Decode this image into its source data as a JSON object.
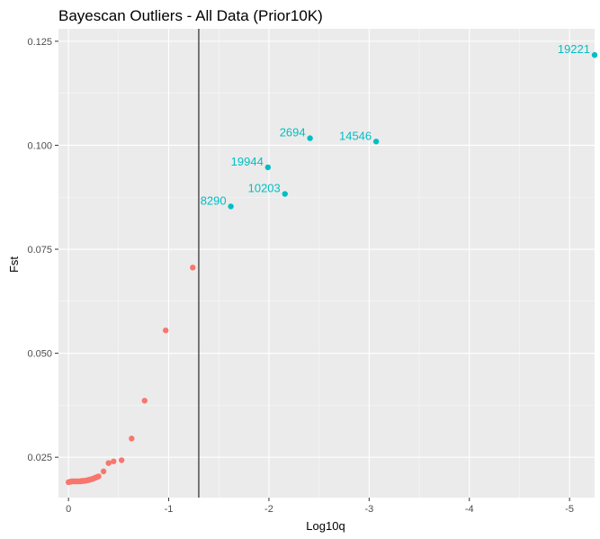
{
  "chart_data": {
    "type": "scatter",
    "title": "Bayescan Outliers - All Data (Prior10K)",
    "xlabel": "Log10q",
    "ylabel": "Fst",
    "xlim": [
      0.1,
      -5.25
    ],
    "ylim": [
      0.0153,
      0.128
    ],
    "x_ticks": [
      0,
      -1,
      -2,
      -3,
      -4,
      -5
    ],
    "x_tick_labels": [
      "0",
      "-1",
      "-2",
      "-3",
      "-4",
      "-5"
    ],
    "y_ticks": [
      0.025,
      0.05,
      0.075,
      0.1,
      0.125
    ],
    "y_tick_labels": [
      "0.025",
      "0.050",
      "0.075",
      "0.100",
      "0.125"
    ],
    "vline": {
      "x": -1.3
    },
    "grid": true,
    "legend": "none",
    "colors": {
      "non_outlier": "#F8766D",
      "outlier": "#00BFC4",
      "panel": "#EBEBEB",
      "grid_major": "#FFFFFF",
      "vline": "#000000"
    },
    "series": [
      {
        "color_key": "non_outlier",
        "points": [
          {
            "x": 0.0,
            "y": 0.019
          },
          {
            "x": -0.01,
            "y": 0.0191
          },
          {
            "x": -0.02,
            "y": 0.0191
          },
          {
            "x": -0.03,
            "y": 0.0192
          },
          {
            "x": -0.04,
            "y": 0.0192
          },
          {
            "x": -0.05,
            "y": 0.0192
          },
          {
            "x": -0.06,
            "y": 0.0192
          },
          {
            "x": -0.07,
            "y": 0.0192
          },
          {
            "x": -0.08,
            "y": 0.0192
          },
          {
            "x": -0.09,
            "y": 0.0192
          },
          {
            "x": -0.1,
            "y": 0.0192
          },
          {
            "x": -0.11,
            "y": 0.0192
          },
          {
            "x": -0.12,
            "y": 0.0192
          },
          {
            "x": -0.13,
            "y": 0.0193
          },
          {
            "x": -0.14,
            "y": 0.0193
          },
          {
            "x": -0.15,
            "y": 0.0193
          },
          {
            "x": -0.16,
            "y": 0.0193
          },
          {
            "x": -0.17,
            "y": 0.0194
          },
          {
            "x": -0.18,
            "y": 0.0194
          },
          {
            "x": -0.19,
            "y": 0.0195
          },
          {
            "x": -0.2,
            "y": 0.0195
          },
          {
            "x": -0.21,
            "y": 0.0196
          },
          {
            "x": -0.22,
            "y": 0.0197
          },
          {
            "x": -0.23,
            "y": 0.0197
          },
          {
            "x": -0.24,
            "y": 0.0198
          },
          {
            "x": -0.25,
            "y": 0.0199
          },
          {
            "x": -0.26,
            "y": 0.02
          },
          {
            "x": -0.27,
            "y": 0.0201
          },
          {
            "x": -0.28,
            "y": 0.0202
          },
          {
            "x": -0.29,
            "y": 0.0203
          },
          {
            "x": -0.3,
            "y": 0.0204
          },
          {
            "x": -0.35,
            "y": 0.0216
          },
          {
            "x": -0.4,
            "y": 0.0236
          },
          {
            "x": -0.45,
            "y": 0.024
          },
          {
            "x": -0.53,
            "y": 0.0243
          },
          {
            "x": -0.63,
            "y": 0.0295
          },
          {
            "x": -0.76,
            "y": 0.0386
          },
          {
            "x": -0.97,
            "y": 0.0555
          },
          {
            "x": -1.24,
            "y": 0.0706
          }
        ]
      },
      {
        "color_key": "outlier",
        "points": [
          {
            "x": -1.62,
            "y": 0.0853,
            "label": "8290"
          },
          {
            "x": -1.99,
            "y": 0.0947,
            "label": "19944"
          },
          {
            "x": -2.16,
            "y": 0.0883,
            "label": "10203"
          },
          {
            "x": -2.41,
            "y": 0.1017,
            "label": "2694"
          },
          {
            "x": -3.07,
            "y": 0.1009,
            "label": "14546"
          },
          {
            "x": -5.25,
            "y": 0.1217,
            "label": "19221"
          }
        ]
      }
    ]
  }
}
